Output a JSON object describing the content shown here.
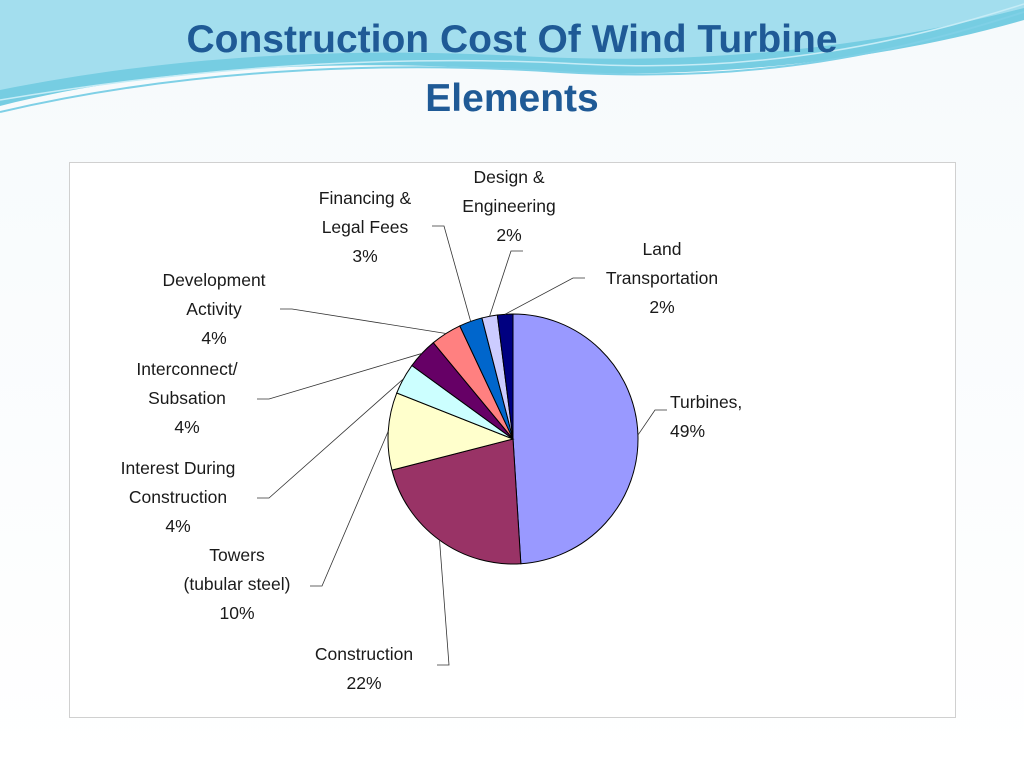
{
  "slide": {
    "title_line1": "Construction Cost Of Wind Turbine",
    "title_line2": "Elements"
  },
  "colors": {
    "title": "#1f5a96",
    "header_swoosh": "#5fc4dd"
  },
  "chart_data": {
    "type": "pie",
    "title": "",
    "unit": "%",
    "slices": [
      {
        "label": "Turbines,",
        "label_lines": [
          "Turbines,"
        ],
        "value": 49,
        "pct_text": "49%",
        "color": "#9999ff"
      },
      {
        "label": "Construction",
        "label_lines": [
          "Construction"
        ],
        "value": 22,
        "pct_text": "22%",
        "color": "#993366"
      },
      {
        "label": "Towers (tubular steel)",
        "label_lines": [
          "Towers",
          "(tubular steel)"
        ],
        "value": 10,
        "pct_text": "10%",
        "color": "#ffffcc"
      },
      {
        "label": "Interest During Construction",
        "label_lines": [
          "Interest During",
          "Construction"
        ],
        "value": 4,
        "pct_text": "4%",
        "color": "#ccffff"
      },
      {
        "label": "Interconnect/ Subsation",
        "label_lines": [
          "Interconnect/",
          "Subsation"
        ],
        "value": 4,
        "pct_text": "4%",
        "color": "#660066"
      },
      {
        "label": "Development Activity",
        "label_lines": [
          "Development",
          "Activity"
        ],
        "value": 4,
        "pct_text": "4%",
        "color": "#ff8080"
      },
      {
        "label": "Financing & Legal Fees",
        "label_lines": [
          "Financing &",
          "Legal Fees"
        ],
        "value": 3,
        "pct_text": "3%",
        "color": "#0066cc"
      },
      {
        "label": "Design & Engineering",
        "label_lines": [
          "Design &",
          "Engineering"
        ],
        "value": 2,
        "pct_text": "2%",
        "color": "#ccccff"
      },
      {
        "label": "Land Transportation",
        "label_lines": [
          "Land",
          "Transportation"
        ],
        "value": 2,
        "pct_text": "2%",
        "color": "#000080"
      }
    ]
  }
}
